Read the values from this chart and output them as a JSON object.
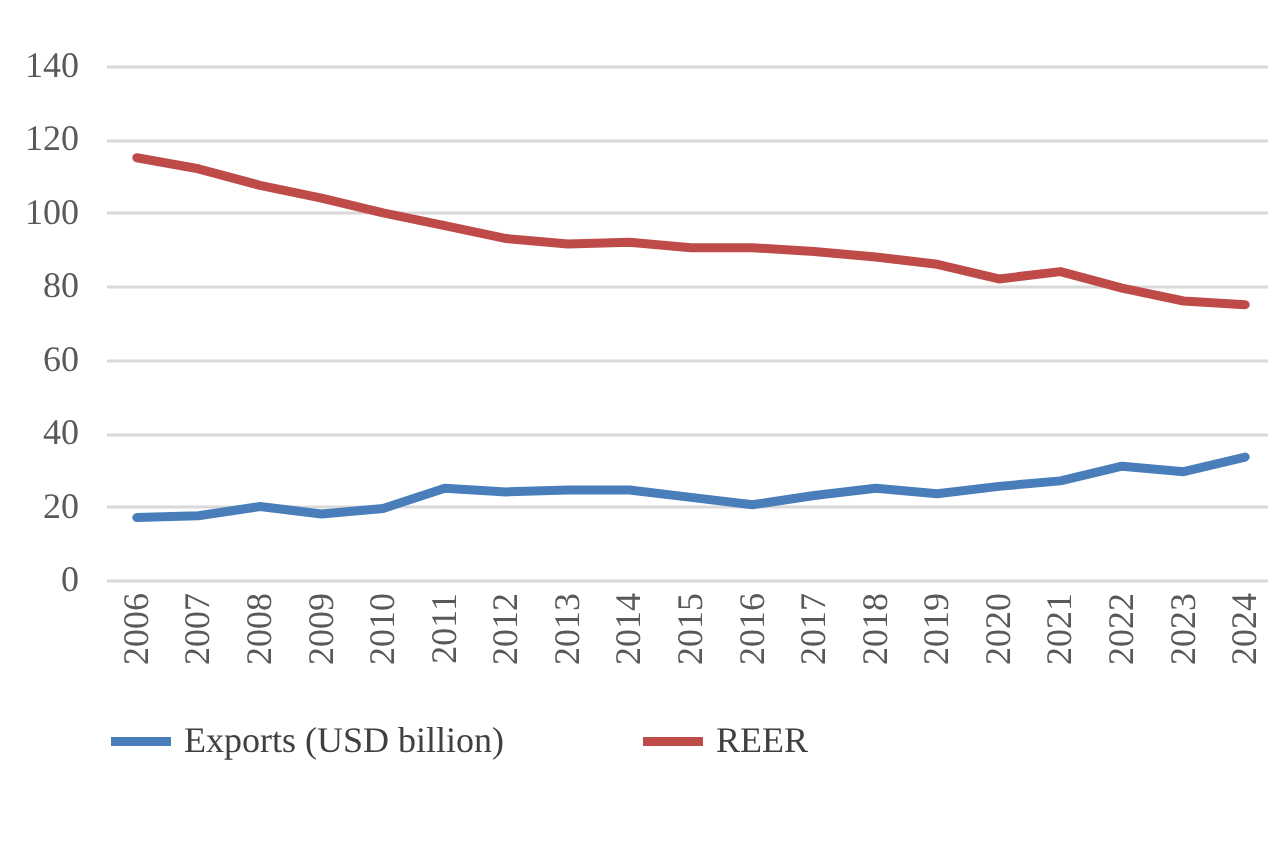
{
  "chart_data": {
    "type": "line",
    "categories": [
      "2006",
      "2007",
      "2008",
      "2009",
      "2010",
      "2011",
      "2012",
      "2013",
      "2014",
      "2015",
      "2016",
      "2017",
      "2018",
      "2019",
      "2020",
      "2021",
      "2022",
      "2023",
      "2024"
    ],
    "series": [
      {
        "name": "Exports (USD billion)",
        "color": "#4a7ebb",
        "values": [
          17,
          17.5,
          20,
          18,
          19.5,
          25,
          24,
          24.5,
          24.5,
          22.5,
          20.5,
          23,
          25,
          23.5,
          25.5,
          27,
          31,
          29.5,
          33.5
        ]
      },
      {
        "name": "REER",
        "color": "#be4b48",
        "values": [
          115,
          112,
          107.5,
          104,
          100,
          96.5,
          93,
          91.5,
          92,
          90.5,
          90.5,
          89.5,
          88,
          86,
          82,
          84,
          79.5,
          76,
          75
        ]
      }
    ],
    "ylim": [
      0,
      140
    ],
    "yticks": [
      0,
      20,
      40,
      60,
      80,
      100,
      120,
      140
    ],
    "grid": "y",
    "legend": "bottom",
    "marker": "none",
    "line_style": "solid"
  }
}
